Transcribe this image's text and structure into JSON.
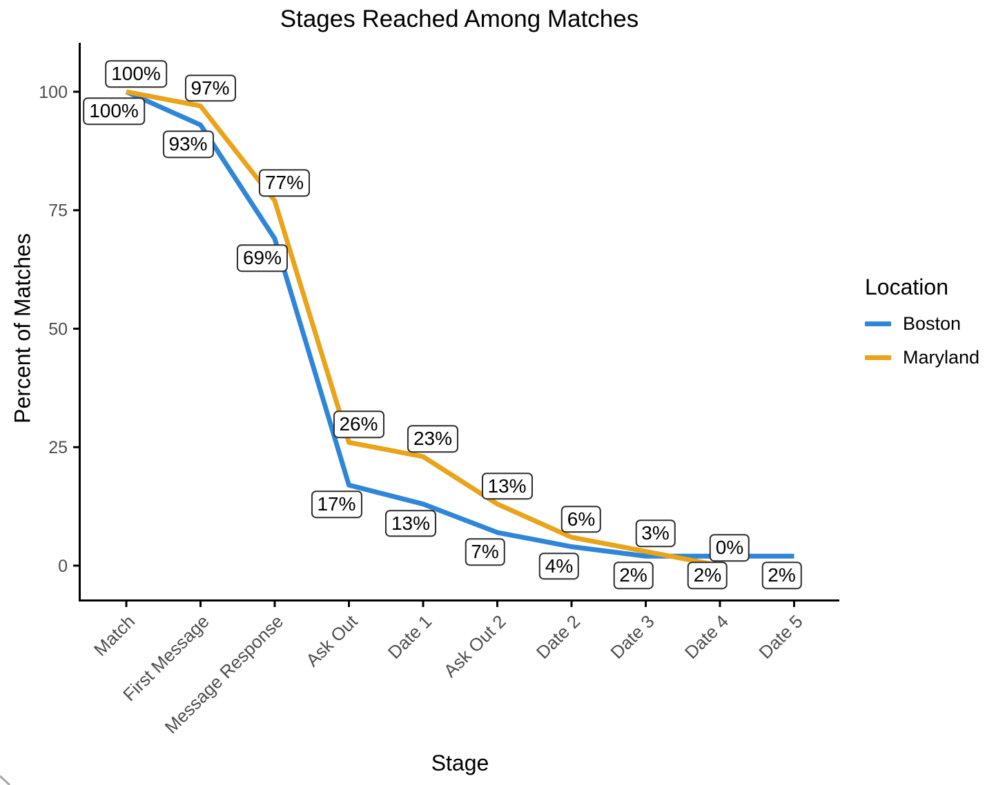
{
  "title": "Stages Reached Among Matches",
  "chart_data": {
    "type": "line",
    "title": "Stages Reached Among Matches",
    "xlabel": "Stage",
    "ylabel": "Percent of Matches",
    "categories": [
      "Match",
      "First Message",
      "Message Response",
      "Ask Out",
      "Date 1",
      "Ask Out 2",
      "Date 2",
      "Date 3",
      "Date 4",
      "Date 5"
    ],
    "yticks": [
      "0",
      "25",
      "50",
      "75",
      "100"
    ],
    "ytick_values": [
      0,
      25,
      50,
      75,
      100
    ],
    "ylim": [
      0,
      100
    ],
    "grid": "off",
    "series": [
      {
        "name": "Boston",
        "color": "#2F86D9",
        "values": [
          100,
          93,
          69,
          17,
          13,
          7,
          4,
          2,
          2,
          2
        ],
        "labels": [
          "100%",
          "93%",
          "69%",
          "17%",
          "13%",
          "7%",
          "4%",
          "2%",
          "2%",
          "2%"
        ]
      },
      {
        "name": "Maryland",
        "color": "#E9A41B",
        "values": [
          100,
          97,
          77,
          26,
          23,
          13,
          6,
          3,
          0,
          null
        ],
        "labels": [
          "100%",
          "97%",
          "77%",
          "26%",
          "23%",
          "13%",
          "6%",
          "3%",
          "0%",
          null
        ]
      }
    ],
    "legend": {
      "title": "Location",
      "position": "right"
    }
  }
}
